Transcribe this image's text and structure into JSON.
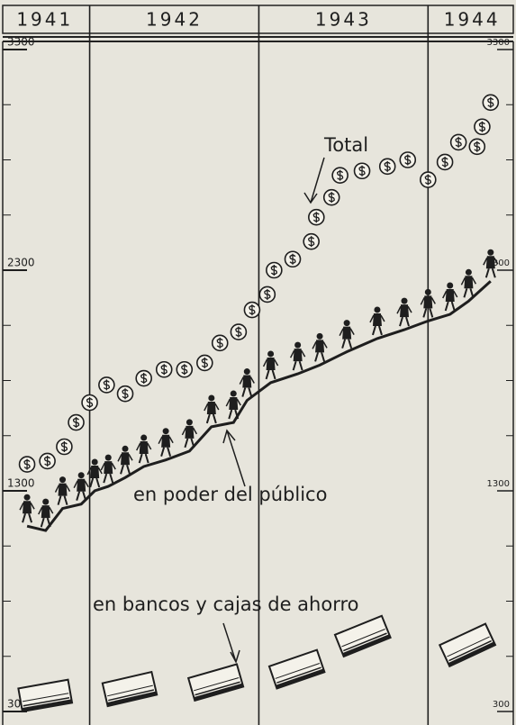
{
  "chart_data": {
    "type": "line",
    "years": [
      "1941",
      "1942",
      "1943",
      "1944"
    ],
    "xlim": [
      1941.47,
      1944.52
    ],
    "xticks": [
      1942,
      1943,
      1944
    ],
    "ylim": [
      300,
      3300
    ],
    "yticks": [
      300,
      1300,
      2300,
      3300
    ],
    "series": [
      {
        "name": "Total",
        "color": "#1e1e1e",
        "marker": "coin",
        "x": [
          1941.63,
          1941.75,
          1941.85,
          1941.92,
          1942.0,
          1942.1,
          1942.21,
          1942.32,
          1942.44,
          1942.56,
          1942.68,
          1942.77,
          1942.88,
          1942.96,
          1943.05,
          1943.09,
          1943.2,
          1943.31,
          1943.34,
          1943.43,
          1943.48,
          1943.61,
          1943.76,
          1943.88,
          1944.0,
          1944.1,
          1944.18,
          1944.29,
          1944.32,
          1944.37
        ],
        "values": [
          1420,
          1435,
          1500,
          1610,
          1700,
          1780,
          1740,
          1810,
          1850,
          1850,
          1880,
          1970,
          2020,
          2120,
          2190,
          2300,
          2350,
          2430,
          2540,
          2630,
          2730,
          2750,
          2770,
          2800,
          2710,
          2790,
          2880,
          2860,
          2950,
          3060
        ]
      },
      {
        "name": "en poder del público",
        "color": "#1e1e1e",
        "marker": "person",
        "x": [
          1941.63,
          1941.74,
          1941.84,
          1941.95,
          1942.03,
          1942.11,
          1942.21,
          1942.32,
          1942.45,
          1942.59,
          1942.72,
          1942.85,
          1942.93,
          1943.07,
          1943.23,
          1943.36,
          1943.52,
          1943.7,
          1943.86,
          1944.0,
          1944.13,
          1944.24,
          1944.37
        ],
        "values": [
          1140,
          1120,
          1220,
          1240,
          1300,
          1320,
          1360,
          1410,
          1440,
          1480,
          1590,
          1610,
          1710,
          1790,
          1830,
          1870,
          1930,
          1990,
          2030,
          2070,
          2100,
          2160,
          2250
        ]
      },
      {
        "name": "en bancos y cajas de ahorro",
        "color": "#1e1e1e",
        "marker": "book",
        "x": [
          1941.74,
          1942.24,
          1942.75,
          1943.23,
          1943.62,
          1944.24
        ],
        "values": [
          360,
          390,
          420,
          480,
          630,
          590
        ]
      }
    ]
  }
}
